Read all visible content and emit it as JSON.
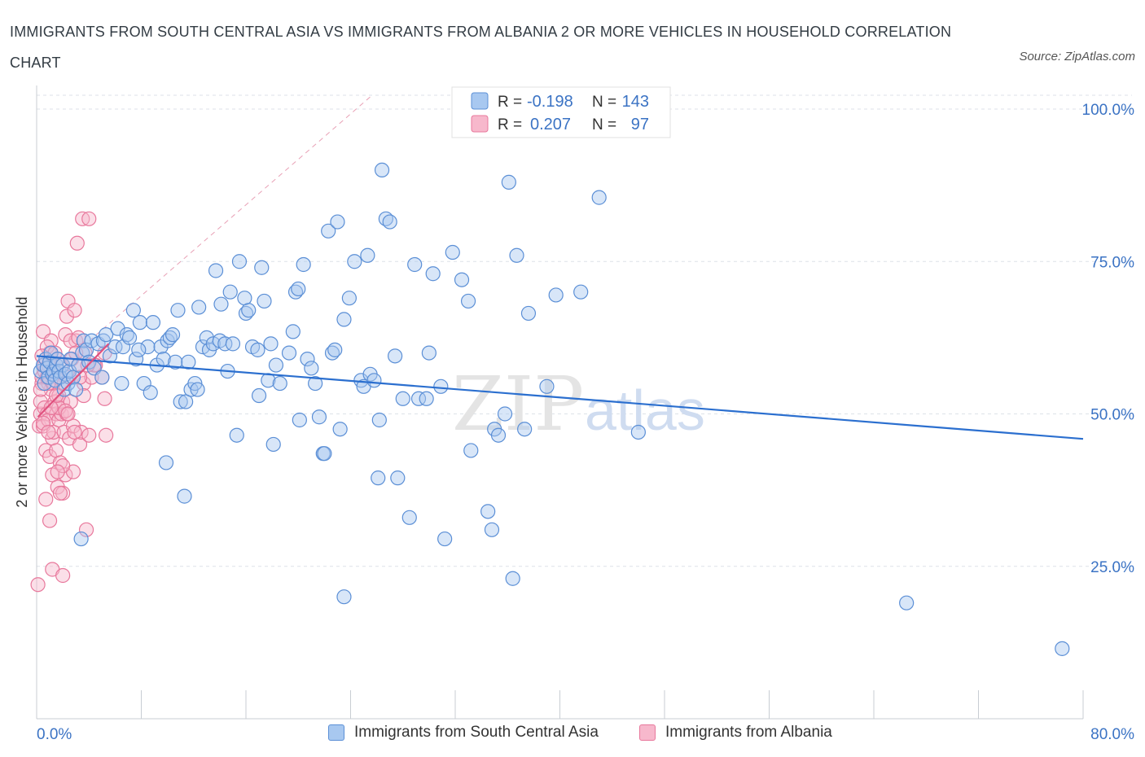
{
  "title": "IMMIGRANTS FROM SOUTH CENTRAL ASIA VS IMMIGRANTS FROM ALBANIA 2 OR MORE VEHICLES IN HOUSEHOLD CORRELATION CHART",
  "source": "Source: ZipAtlas.com",
  "watermark": {
    "zip": "ZIP",
    "atlas": "atlas"
  },
  "legend_top": [
    {
      "r_label": "R =",
      "r_value": "-0.198",
      "n_label": "N =",
      "n_value": "143"
    },
    {
      "r_label": "R =",
      "r_value": "0.207",
      "n_label": "N =",
      "n_value": "97"
    }
  ],
  "colors": {
    "blue_fill": "#a8c8f0",
    "blue_stroke": "#5b8fd6",
    "blue_line": "#2b6fcf",
    "pink_fill": "#f7b8cc",
    "pink_stroke": "#e8789c",
    "pink_line": "#e0507e",
    "grid": "#dde2e8",
    "axis_text": "#3b73c4",
    "ref_line": "#e8a0b5"
  },
  "chart_data": {
    "type": "scatter",
    "title": "IMMIGRANTS FROM SOUTH CENTRAL ASIA VS IMMIGRANTS FROM ALBANIA 2 OR MORE VEHICLES IN HOUSEHOLD CORRELATION CHART",
    "xlabel": "",
    "ylabel": "2 or more Vehicles in Household",
    "xlim": [
      0,
      80
    ],
    "ylim": [
      0,
      100
    ],
    "x_tick_labels": [
      "0.0%",
      "80.0%"
    ],
    "y_ticks": [
      25,
      50,
      75,
      100
    ],
    "y_tick_labels": [
      "25.0%",
      "50.0%",
      "75.0%",
      "100.0%"
    ],
    "grid": true,
    "legend_position": "top-center",
    "series": [
      {
        "name": "Immigrants from South Central Asia",
        "R": -0.198,
        "N": 143,
        "trend": {
          "x": [
            0,
            80
          ],
          "y": [
            59.5,
            45.9
          ]
        },
        "points": [
          [
            0.3,
            57
          ],
          [
            0.5,
            58
          ],
          [
            0.6,
            55
          ],
          [
            0.7,
            59
          ],
          [
            0.8,
            57.5
          ],
          [
            0.9,
            56
          ],
          [
            1.0,
            58.5
          ],
          [
            1.1,
            60
          ],
          [
            1.2,
            56.5
          ],
          [
            1.3,
            57
          ],
          [
            1.4,
            55.5
          ],
          [
            1.5,
            58
          ],
          [
            1.6,
            59
          ],
          [
            1.7,
            57
          ],
          [
            1.8,
            56
          ],
          [
            2.0,
            58
          ],
          [
            2.1,
            54
          ],
          [
            2.2,
            56.5
          ],
          [
            2.4,
            55
          ],
          [
            2.5,
            57
          ],
          [
            2.6,
            59
          ],
          [
            2.8,
            56
          ],
          [
            3.0,
            54
          ],
          [
            3.2,
            58
          ],
          [
            3.5,
            60
          ],
          [
            3.6,
            62
          ],
          [
            3.8,
            60.5
          ],
          [
            4.0,
            58.5
          ],
          [
            4.2,
            62
          ],
          [
            4.4,
            57.5
          ],
          [
            4.7,
            61.5
          ],
          [
            5.1,
            62
          ],
          [
            5.3,
            63
          ],
          [
            5.6,
            59.5
          ],
          [
            6.0,
            61
          ],
          [
            6.2,
            64
          ],
          [
            6.6,
            61
          ],
          [
            6.9,
            63
          ],
          [
            7.1,
            62.5
          ],
          [
            7.4,
            67
          ],
          [
            7.6,
            59
          ],
          [
            7.9,
            65
          ],
          [
            8.2,
            55
          ],
          [
            8.5,
            61
          ],
          [
            8.7,
            53.5
          ],
          [
            8.9,
            65
          ],
          [
            9.2,
            58
          ],
          [
            9.5,
            61
          ],
          [
            9.7,
            59
          ],
          [
            10.0,
            62
          ],
          [
            10.2,
            62.5
          ],
          [
            10.4,
            63
          ],
          [
            10.6,
            58.5
          ],
          [
            10.8,
            67
          ],
          [
            11.0,
            52
          ],
          [
            11.4,
            52
          ],
          [
            11.6,
            58.5
          ],
          [
            11.8,
            54
          ],
          [
            12.1,
            55
          ],
          [
            12.3,
            54
          ],
          [
            12.4,
            67.5
          ],
          [
            12.7,
            61
          ],
          [
            13.0,
            62.5
          ],
          [
            13.2,
            60.5
          ],
          [
            13.5,
            61.5
          ],
          [
            13.7,
            73.5
          ],
          [
            14.0,
            62
          ],
          [
            14.1,
            68
          ],
          [
            14.4,
            61.5
          ],
          [
            14.6,
            57
          ],
          [
            14.8,
            70
          ],
          [
            15.0,
            61.5
          ],
          [
            15.3,
            46.5
          ],
          [
            15.5,
            75
          ],
          [
            15.9,
            69
          ],
          [
            16.0,
            66.5
          ],
          [
            16.2,
            67
          ],
          [
            16.5,
            61
          ],
          [
            16.9,
            60.5
          ],
          [
            17.0,
            53
          ],
          [
            17.2,
            74
          ],
          [
            17.4,
            68.5
          ],
          [
            17.7,
            55.5
          ],
          [
            17.9,
            61.5
          ],
          [
            18.1,
            45
          ],
          [
            18.3,
            58
          ],
          [
            18.6,
            55
          ],
          [
            19.3,
            60
          ],
          [
            19.6,
            63.5
          ],
          [
            19.8,
            70
          ],
          [
            20.0,
            70.5
          ],
          [
            20.1,
            49
          ],
          [
            20.4,
            74.5
          ],
          [
            20.7,
            59
          ],
          [
            21.0,
            57.5
          ],
          [
            21.3,
            55
          ],
          [
            21.6,
            49.5
          ],
          [
            21.9,
            43.5
          ],
          [
            22.0,
            43.5
          ],
          [
            22.3,
            80
          ],
          [
            22.6,
            60
          ],
          [
            22.8,
            60.5
          ],
          [
            23.0,
            81.5
          ],
          [
            23.2,
            47.5
          ],
          [
            23.5,
            65.5
          ],
          [
            23.9,
            69
          ],
          [
            24.3,
            75
          ],
          [
            24.8,
            55.5
          ],
          [
            25.0,
            54.5
          ],
          [
            25.3,
            76
          ],
          [
            25.5,
            56.5
          ],
          [
            25.8,
            55.5
          ],
          [
            26.1,
            39.5
          ],
          [
            26.4,
            90
          ],
          [
            26.7,
            82
          ],
          [
            27.0,
            81.5
          ],
          [
            27.4,
            59.5
          ],
          [
            27.6,
            39.5
          ],
          [
            28.0,
            52.5
          ],
          [
            28.5,
            33
          ],
          [
            28.9,
            74.5
          ],
          [
            29.2,
            52.5
          ],
          [
            29.8,
            52.5
          ],
          [
            30.0,
            60
          ],
          [
            30.3,
            73
          ],
          [
            30.9,
            54.5
          ],
          [
            31.2,
            29.5
          ],
          [
            31.8,
            76.5
          ],
          [
            32.5,
            72
          ],
          [
            33.0,
            68.5
          ],
          [
            33.2,
            44
          ],
          [
            34.5,
            34
          ],
          [
            34.8,
            31
          ],
          [
            35.0,
            47.5
          ],
          [
            35.3,
            46.5
          ],
          [
            35.8,
            50
          ],
          [
            36.1,
            88
          ],
          [
            36.4,
            23
          ],
          [
            36.7,
            76
          ],
          [
            37.3,
            47.5
          ],
          [
            37.6,
            66.5
          ],
          [
            39.0,
            54.5
          ],
          [
            39.7,
            69.5
          ],
          [
            41.6,
            70
          ],
          [
            43.0,
            85.5
          ],
          [
            46.0,
            47
          ],
          [
            66.5,
            19
          ],
          [
            78.4,
            11.5
          ],
          [
            3.4,
            29.5
          ],
          [
            5.0,
            56
          ],
          [
            6.5,
            55
          ],
          [
            7.8,
            60.5
          ],
          [
            9.9,
            42
          ],
          [
            11.3,
            36.5
          ],
          [
            26.2,
            49
          ],
          [
            23.5,
            20
          ]
        ]
      },
      {
        "name": "Immigrants from Albania",
        "R": 0.207,
        "N": 97,
        "trend": {
          "x": [
            0.1,
            5.5
          ],
          "y": [
            49.5,
            61.5
          ]
        },
        "points": [
          [
            0.1,
            22
          ],
          [
            0.2,
            48
          ],
          [
            0.3,
            50
          ],
          [
            0.3,
            52
          ],
          [
            0.4,
            55
          ],
          [
            0.4,
            56
          ],
          [
            0.5,
            48
          ],
          [
            0.5,
            63.5
          ],
          [
            0.6,
            51
          ],
          [
            0.6,
            57
          ],
          [
            0.7,
            44
          ],
          [
            0.7,
            36
          ],
          [
            0.8,
            50
          ],
          [
            0.8,
            56
          ],
          [
            0.9,
            49
          ],
          [
            0.9,
            58
          ],
          [
            1.0,
            43
          ],
          [
            1.0,
            60
          ],
          [
            1.1,
            54
          ],
          [
            1.1,
            62
          ],
          [
            1.2,
            46
          ],
          [
            1.2,
            40
          ],
          [
            1.3,
            55
          ],
          [
            1.3,
            47
          ],
          [
            1.4,
            52
          ],
          [
            1.4,
            57
          ],
          [
            1.5,
            50
          ],
          [
            1.5,
            44
          ],
          [
            1.6,
            38
          ],
          [
            1.6,
            59
          ],
          [
            1.7,
            53
          ],
          [
            1.7,
            49
          ],
          [
            1.8,
            42
          ],
          [
            1.8,
            56
          ],
          [
            1.9,
            50
          ],
          [
            1.9,
            58
          ],
          [
            2.0,
            37
          ],
          [
            2.0,
            52
          ],
          [
            2.1,
            47
          ],
          [
            2.1,
            55
          ],
          [
            2.2,
            40
          ],
          [
            2.2,
            63
          ],
          [
            2.3,
            50
          ],
          [
            2.3,
            66
          ],
          [
            2.4,
            68.5
          ],
          [
            2.5,
            56
          ],
          [
            2.5,
            46
          ],
          [
            2.6,
            52
          ],
          [
            2.7,
            59
          ],
          [
            2.8,
            48
          ],
          [
            2.9,
            67
          ],
          [
            3.0,
            62
          ],
          [
            3.1,
            78
          ],
          [
            3.2,
            58
          ],
          [
            3.3,
            45
          ],
          [
            3.4,
            47
          ],
          [
            3.5,
            82
          ],
          [
            3.6,
            55
          ],
          [
            3.7,
            60
          ],
          [
            3.8,
            31
          ],
          [
            4.0,
            82
          ],
          [
            4.2,
            56
          ],
          [
            4.5,
            58
          ],
          [
            5.0,
            56
          ],
          [
            5.2,
            60
          ],
          [
            1.0,
            32.5
          ],
          [
            0.5,
            48.5
          ],
          [
            0.9,
            47
          ],
          [
            1.3,
            57
          ],
          [
            1.7,
            51
          ],
          [
            2.2,
            50.5
          ],
          [
            2.6,
            62
          ],
          [
            3.0,
            60
          ],
          [
            1.2,
            24.5
          ],
          [
            2.0,
            23.5
          ],
          [
            1.8,
            37
          ],
          [
            2.4,
            50
          ],
          [
            0.8,
            61
          ],
          [
            1.4,
            60
          ],
          [
            3.3,
            56
          ],
          [
            5.2,
            52.5
          ],
          [
            5.3,
            46.5
          ],
          [
            4.0,
            46.5
          ],
          [
            2.8,
            40.5
          ],
          [
            2.0,
            41.5
          ],
          [
            1.6,
            40.5
          ],
          [
            0.6,
            58
          ],
          [
            0.4,
            59.5
          ],
          [
            0.9,
            55
          ],
          [
            1.5,
            53
          ],
          [
            2.9,
            47
          ],
          [
            3.6,
            53
          ],
          [
            4.4,
            58
          ],
          [
            3.9,
            58
          ],
          [
            3.2,
            62.5
          ],
          [
            0.3,
            54
          ],
          [
            1.1,
            51
          ]
        ]
      }
    ]
  },
  "legend_bottom": [
    {
      "label": "Immigrants from South Central Asia"
    },
    {
      "label": "Immigrants from Albania"
    }
  ]
}
